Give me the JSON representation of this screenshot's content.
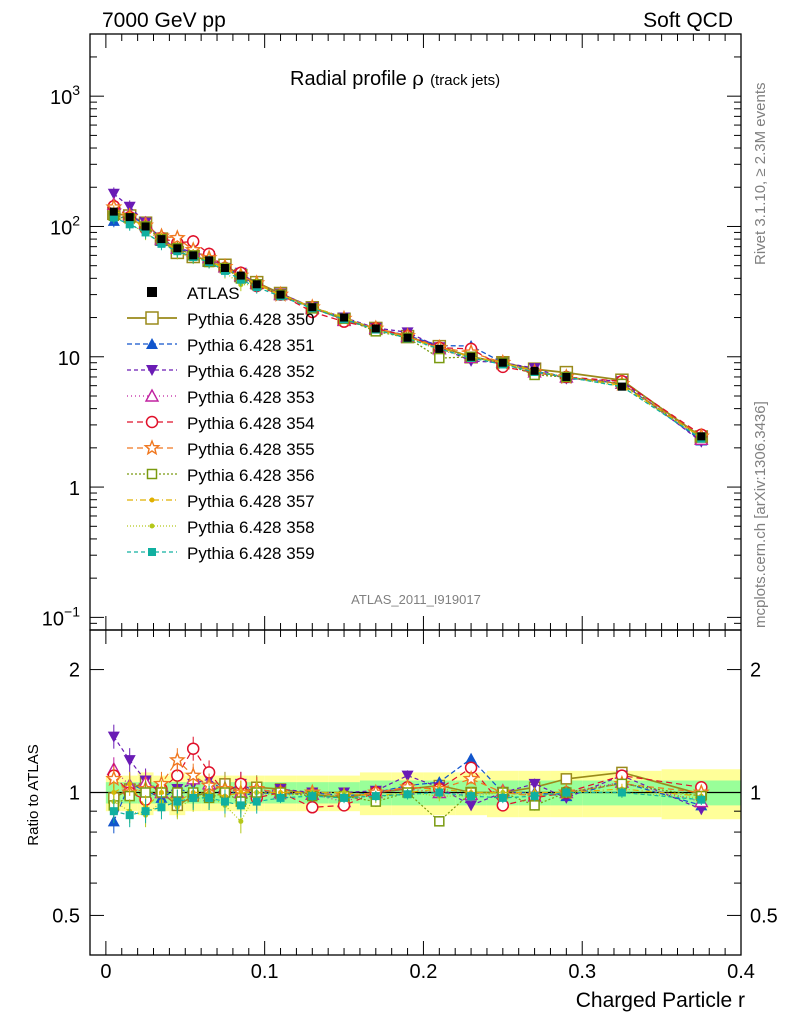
{
  "header": {
    "left": "7000 GeV pp",
    "right": "Soft QCD"
  },
  "title": {
    "main": "Radial profile ",
    "symbol": "ρ",
    "suffix": "(track jets)"
  },
  "side_text": {
    "rivet": "Rivet 3.1.10, ≥ 2.3M events",
    "mcplots": "mcplots.cern.ch [arXiv:1306.3436]"
  },
  "analysis_tag": "ATLAS_2011_I919017",
  "chart_data": [
    {
      "type": "line",
      "panel": "main",
      "yscale": "log",
      "ylim": [
        0.08,
        3000
      ],
      "xlim": [
        -0.01,
        0.4
      ],
      "y_ticks": [
        {
          "value": 1000,
          "label": "10",
          "sup": "3"
        },
        {
          "value": 100,
          "label": "10",
          "sup": "2"
        },
        {
          "value": 10,
          "label": "10",
          "sup": ""
        },
        {
          "value": 1,
          "label": "1",
          "sup": ""
        },
        {
          "value": 0.1,
          "label": "10",
          "sup": "−1"
        }
      ],
      "x": [
        0.005,
        0.015,
        0.025,
        0.035,
        0.045,
        0.055,
        0.065,
        0.075,
        0.085,
        0.095,
        0.11,
        0.13,
        0.15,
        0.17,
        0.19,
        0.21,
        0.23,
        0.25,
        0.27,
        0.29,
        0.325,
        0.375
      ],
      "data": {
        "name": "ATLAS",
        "values": [
          130,
          118,
          100,
          80,
          68,
          60,
          55,
          48,
          42,
          36,
          30,
          24,
          20,
          16.5,
          14,
          11.5,
          10,
          9,
          7.8,
          7,
          5.9,
          2.45
        ]
      },
      "series": [
        {
          "name": "Pythia 6.428 350",
          "color": "#9a8a1a",
          "marker": "open-square",
          "dash": "",
          "ratio": [
            0.97,
            1.02,
            1.06,
            1.0,
            0.93,
            0.98,
            1.0,
            1.05,
            1.0,
            1.03,
            1.02,
            0.99,
            0.97,
            1.0,
            1.02,
            1.04,
            1.0,
            1.0,
            1.03,
            1.08,
            1.12,
            0.99
          ]
        },
        {
          "name": "Pythia 6.428 351",
          "color": "#1155cc",
          "marker": "filled-triangle-up",
          "dash": "5,3",
          "ratio": [
            0.85,
            1.05,
            1.01,
            0.97,
            1.02,
            1.0,
            0.98,
            1.02,
            0.98,
            1.0,
            0.99,
            1.0,
            0.98,
            1.0,
            1.04,
            1.06,
            1.21,
            1.0,
            1.0,
            0.98,
            1.06,
            0.93
          ]
        },
        {
          "name": "Pythia 6.428 352",
          "color": "#6a1bb5",
          "marker": "filled-triangle-down",
          "dash": "4,3",
          "ratio": [
            1.37,
            1.2,
            1.07,
            1.0,
            1.02,
            1.05,
            1.08,
            1.0,
            1.05,
            1.0,
            1.02,
            1.0,
            1.0,
            1.01,
            1.1,
            1.03,
            0.93,
            1.0,
            1.05,
            0.97,
            1.1,
            0.91
          ]
        },
        {
          "name": "Pythia 6.428 353",
          "color": "#c020a0",
          "marker": "open-triangle-up",
          "dash": "1,3",
          "ratio": [
            1.14,
            1.04,
            1.06,
            1.0,
            1.0,
            1.08,
            1.05,
            1.02,
            1.0,
            1.02,
            1.0,
            0.99,
            0.95,
            1.0,
            1.02,
            1.0,
            0.99,
            1.01,
            0.98,
            1.0,
            1.06,
            0.95
          ]
        },
        {
          "name": "Pythia 6.428 354",
          "color": "#e0102a",
          "marker": "open-circle",
          "dash": "6,4",
          "ratio": [
            1.1,
            1.0,
            0.96,
            1.02,
            1.1,
            1.28,
            1.12,
            1.0,
            1.05,
            0.97,
            1.0,
            0.92,
            0.93,
            1.0,
            1.03,
            1.02,
            1.15,
            0.93,
            0.97,
            1.0,
            1.1,
            1.03
          ]
        },
        {
          "name": "Pythia 6.428 355",
          "color": "#f07820",
          "marker": "open-star",
          "dash": "6,4",
          "ratio": [
            1.08,
            1.0,
            1.02,
            1.05,
            1.2,
            1.1,
            1.04,
            1.02,
            1.0,
            1.02,
            1.0,
            1.0,
            0.98,
            1.0,
            1.03,
            1.02,
            1.08,
            1.0,
            0.98,
            1.0,
            1.05,
            1.0
          ]
        },
        {
          "name": "Pythia 6.428 356",
          "color": "#7a9a10",
          "marker": "open-square-small",
          "dash": "2,2",
          "ratio": [
            0.93,
            0.98,
            1.0,
            1.0,
            1.0,
            1.0,
            0.97,
            1.0,
            0.95,
            1.0,
            1.0,
            0.98,
            0.98,
            0.95,
            1.0,
            0.85,
            1.0,
            1.0,
            0.93,
            1.0,
            1.05,
            0.98
          ]
        },
        {
          "name": "Pythia 6.428 357",
          "color": "#e0b000",
          "marker": "small-dot",
          "dash": "6,3,1,3",
          "ratio": [
            1.0,
            1.05,
            0.92,
            1.0,
            0.95,
            1.0,
            1.0,
            0.98,
            1.0,
            1.0,
            1.0,
            1.0,
            1.0,
            0.98,
            1.0,
            1.02,
            1.0,
            1.0,
            1.0,
            1.0,
            1.02,
            0.98
          ]
        },
        {
          "name": "Pythia 6.428 358",
          "color": "#b5c81a",
          "marker": "small-dot",
          "dash": "1,2",
          "ratio": [
            0.95,
            0.9,
            0.88,
            0.95,
            0.92,
            0.96,
            0.98,
            0.93,
            0.85,
            1.0,
            0.98,
            1.0,
            1.0,
            0.97,
            1.0,
            0.98,
            0.98,
            1.0,
            0.98,
            1.0,
            1.0,
            0.97
          ]
        },
        {
          "name": "Pythia 6.428 359",
          "color": "#10b0a0",
          "marker": "filled-square-small",
          "dash": "4,3",
          "ratio": [
            0.9,
            0.88,
            0.9,
            0.92,
            0.95,
            0.97,
            0.97,
            0.95,
            0.93,
            0.95,
            0.97,
            0.98,
            0.97,
            0.98,
            0.99,
            1.0,
            0.98,
            0.97,
            0.98,
            1.0,
            1.0,
            0.96
          ]
        }
      ]
    },
    {
      "type": "line",
      "panel": "ratio",
      "ylabel": "Ratio to ATLAS",
      "xlabel": "Charged Particle r",
      "yscale": "log",
      "ylim": [
        0.4,
        2.5
      ],
      "xlim": [
        -0.01,
        0.4
      ],
      "y_ticks": [
        {
          "value": 2,
          "label": "2"
        },
        {
          "value": 1,
          "label": "1"
        },
        {
          "value": 0.5,
          "label": "0.5"
        }
      ],
      "x_ticks": [
        {
          "value": 0,
          "label": "0"
        },
        {
          "value": 0.1,
          "label": "0.1"
        },
        {
          "value": 0.2,
          "label": "0.2"
        },
        {
          "value": 0.3,
          "label": "0.3"
        },
        {
          "value": 0.4,
          "label": "0.4"
        }
      ],
      "band_bins": [
        0.0,
        0.01,
        0.02,
        0.03,
        0.04,
        0.05,
        0.06,
        0.07,
        0.08,
        0.09,
        0.1,
        0.12,
        0.14,
        0.16,
        0.18,
        0.2,
        0.22,
        0.24,
        0.26,
        0.28,
        0.3,
        0.35,
        0.4
      ],
      "band_stat": [
        0.06,
        0.06,
        0.06,
        0.06,
        0.06,
        0.06,
        0.06,
        0.06,
        0.06,
        0.06,
        0.06,
        0.06,
        0.06,
        0.07,
        0.07,
        0.07,
        0.07,
        0.07,
        0.07,
        0.07,
        0.07,
        0.07
      ],
      "band_total": [
        0.1,
        0.1,
        0.12,
        0.1,
        0.12,
        0.1,
        0.1,
        0.1,
        0.1,
        0.1,
        0.1,
        0.1,
        0.1,
        0.12,
        0.12,
        0.12,
        0.12,
        0.13,
        0.13,
        0.13,
        0.13,
        0.14
      ],
      "band_colors": {
        "total": "#ffff99",
        "stat": "#99ff99"
      }
    }
  ]
}
